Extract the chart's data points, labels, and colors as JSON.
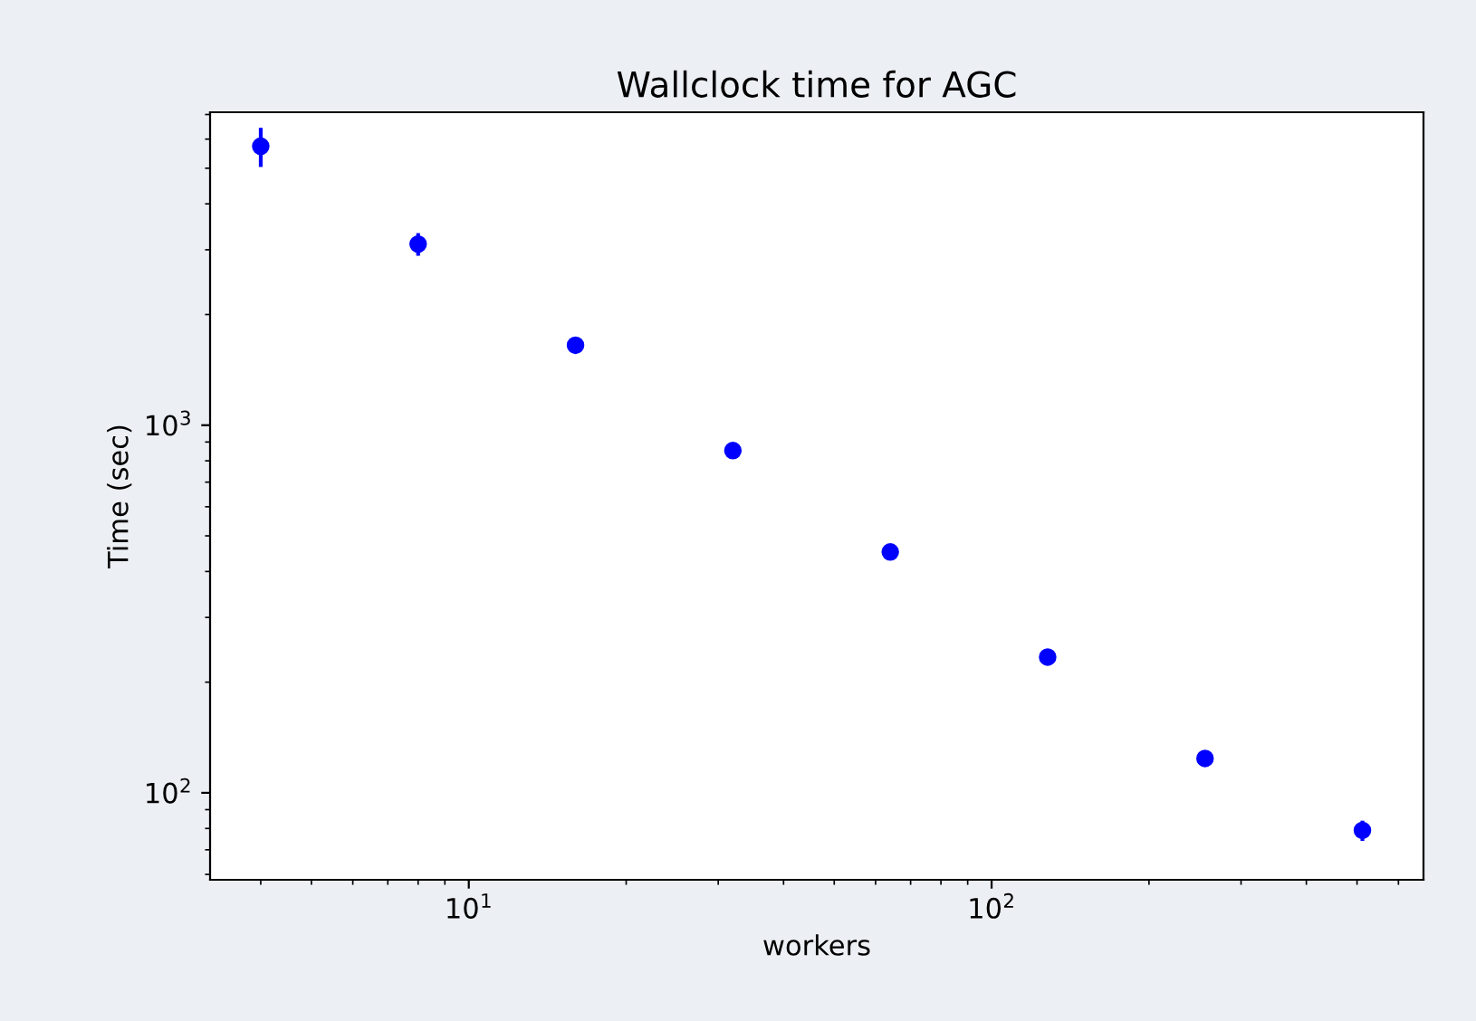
{
  "chart_data": {
    "type": "scatter",
    "title": "Wallclock time for AGC",
    "xlabel": "workers",
    "ylabel": "Time (sec)",
    "x": [
      4,
      8,
      16,
      32,
      64,
      128,
      256,
      512
    ],
    "series": [
      {
        "color": "#0000ff",
        "values": [
          5740,
          3110,
          1650,
          853,
          452,
          234,
          124,
          79
        ],
        "errors": [
          700,
          220,
          null,
          null,
          null,
          null,
          null,
          5
        ]
      }
    ],
    "log": "xy",
    "xlim": [
      3.2,
      670
    ],
    "ylim": [
      58,
      7100
    ],
    "xticks": [
      {
        "value": 10,
        "label": "10$^{1}$"
      },
      {
        "value": 100,
        "label": "10$^{2}$"
      }
    ],
    "yticks": [
      {
        "value": 100,
        "label": "10$^{2}$"
      },
      {
        "value": 1000,
        "label": "10$^{3}$"
      }
    ],
    "marker": "circle",
    "grid": false,
    "legend": false
  }
}
